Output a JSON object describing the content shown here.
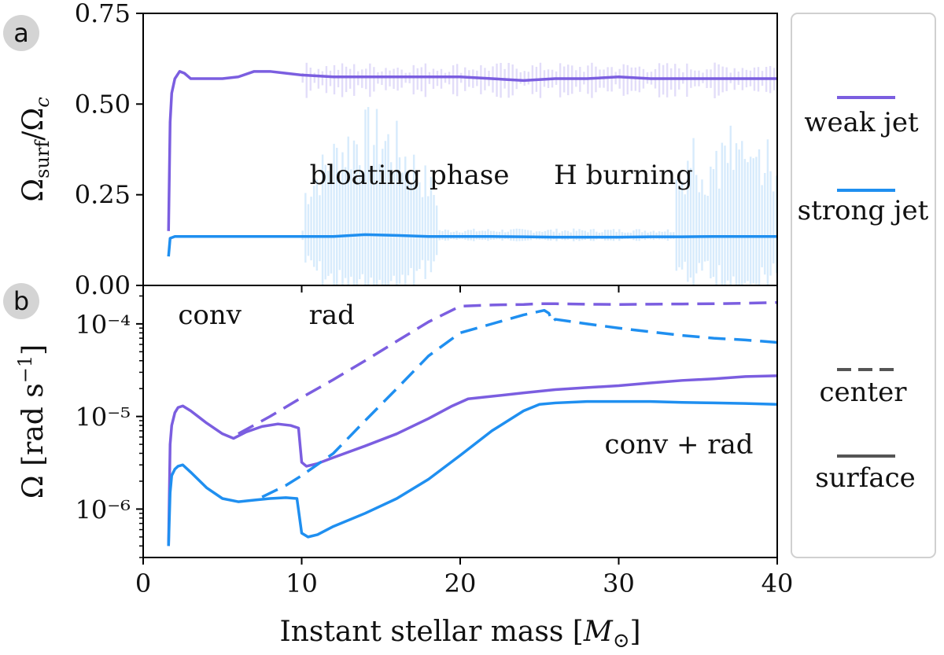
{
  "colors": {
    "weak": "#7b5ee0",
    "strong": "#1f8ff0",
    "weak_band": "#cfc6f5",
    "strong_band": "#c6e2fb",
    "legend_line": "#555555"
  },
  "panels": {
    "a": {
      "letter": "a"
    },
    "b": {
      "letter": "b"
    }
  },
  "legend": {
    "weak": "weak jet",
    "strong": "strong jet",
    "center": "center",
    "surface": "surface"
  },
  "chart_data": [
    {
      "id": "a",
      "type": "line",
      "xlabel": "",
      "ylabel": "Ω_surf/Ω_c",
      "xlim": [
        0,
        40
      ],
      "ylim": [
        0,
        0.75
      ],
      "yticks": [
        "0.00",
        "0.25",
        "0.50",
        "0.75"
      ],
      "annotations": [
        {
          "text": "bloating phase",
          "x": 16.8,
          "y": 0.28
        },
        {
          "text": "H burning",
          "x": 30.3,
          "y": 0.28
        }
      ],
      "series": [
        {
          "name": "weak jet",
          "x": [
            1.6,
            1.7,
            1.8,
            2.0,
            2.3,
            2.6,
            3.0,
            4.0,
            5.0,
            6.0,
            7.0,
            8.0,
            9.0,
            10,
            12,
            14,
            16,
            18,
            20,
            22,
            24,
            26,
            28,
            30,
            32,
            34,
            36,
            38,
            40
          ],
          "y": [
            0.15,
            0.45,
            0.53,
            0.57,
            0.59,
            0.585,
            0.57,
            0.57,
            0.57,
            0.575,
            0.59,
            0.59,
            0.585,
            0.58,
            0.575,
            0.575,
            0.575,
            0.575,
            0.575,
            0.57,
            0.565,
            0.57,
            0.57,
            0.575,
            0.57,
            0.57,
            0.57,
            0.57,
            0.57
          ]
        },
        {
          "name": "strong jet",
          "x": [
            1.6,
            1.7,
            2.0,
            3.0,
            5.0,
            8.0,
            10,
            12,
            14,
            16,
            18,
            20,
            22,
            24,
            26,
            28,
            30,
            32,
            34,
            36,
            38,
            40
          ],
          "y": [
            0.08,
            0.13,
            0.135,
            0.135,
            0.135,
            0.135,
            0.135,
            0.135,
            0.14,
            0.138,
            0.135,
            0.135,
            0.135,
            0.134,
            0.133,
            0.133,
            0.133,
            0.134,
            0.134,
            0.135,
            0.135,
            0.135
          ]
        }
      ]
    },
    {
      "id": "b",
      "type": "line",
      "scale": "log",
      "xlabel": "Instant stellar mass [M_⊙]",
      "ylabel": "Ω [rad s⁻¹]",
      "xlim": [
        0,
        40
      ],
      "ylim": [
        3e-07,
        0.00026
      ],
      "xticks": [
        "0",
        "10",
        "20",
        "30",
        "40"
      ],
      "yticks": [
        "10⁻⁶",
        "10⁻⁵",
        "10⁻⁴"
      ],
      "annotations": [
        {
          "text": "conv",
          "x": 4.2,
          "y": 0.0001
        },
        {
          "text": "rad",
          "x": 11.9,
          "y": 0.0001
        },
        {
          "text": "conv + rad",
          "x": 33.8,
          "y": 4e-06
        }
      ],
      "series": [
        {
          "name": "weak jet",
          "kind": "surface",
          "x": [
            1.6,
            1.7,
            1.8,
            2.0,
            2.2,
            2.5,
            3.0,
            4.0,
            5.0,
            5.7,
            6.5,
            7.5,
            8.5,
            9.3,
            9.8,
            10.0,
            10.3,
            11,
            12,
            14,
            16,
            18,
            19.5,
            20.5,
            22,
            24,
            26,
            28,
            30,
            32,
            34,
            36,
            38,
            40
          ],
          "y": [
            4e-07,
            5e-06,
            8e-06,
            1.1e-05,
            1.25e-05,
            1.3e-05,
            1.15e-05,
            8.5e-06,
            6.5e-06,
            5.8e-06,
            6.8e-06,
            7.8e-06,
            8.3e-06,
            8e-06,
            7.5e-06,
            3.2e-06,
            2.9e-06,
            3.1e-06,
            3.6e-06,
            4.8e-06,
            6.5e-06,
            9.5e-06,
            1.3e-05,
            1.55e-05,
            1.65e-05,
            1.8e-05,
            1.95e-05,
            2.05e-05,
            2.15e-05,
            2.3e-05,
            2.45e-05,
            2.55e-05,
            2.7e-05,
            2.75e-05
          ]
        },
        {
          "name": "strong jet",
          "kind": "surface",
          "x": [
            1.6,
            1.7,
            1.8,
            2.0,
            2.2,
            2.5,
            3.0,
            4.0,
            5.0,
            6.0,
            7.0,
            8.0,
            9.0,
            9.7,
            10.0,
            10.4,
            11,
            12,
            14,
            16,
            18,
            20,
            22,
            24,
            25,
            26,
            28,
            30,
            32,
            34,
            36,
            38,
            40
          ],
          "y": [
            4e-07,
            1.5e-06,
            2.3e-06,
            2.7e-06,
            2.9e-06,
            3e-06,
            2.5e-06,
            1.7e-06,
            1.3e-06,
            1.2e-06,
            1.25e-06,
            1.3e-06,
            1.33e-06,
            1.3e-06,
            5.5e-07,
            5e-07,
            5.3e-07,
            6.5e-07,
            9e-07,
            1.3e-06,
            2.1e-06,
            3.8e-06,
            7e-06,
            1.15e-05,
            1.35e-05,
            1.4e-05,
            1.45e-05,
            1.45e-05,
            1.45e-05,
            1.42e-05,
            1.4e-05,
            1.38e-05,
            1.35e-05
          ]
        },
        {
          "name": "weak jet",
          "kind": "center",
          "x": [
            6.0,
            8.0,
            10,
            12,
            14,
            16,
            18,
            20,
            22,
            24,
            25,
            26,
            28,
            30,
            32,
            34,
            36,
            38,
            40
          ],
          "y": [
            6.5e-06,
            1e-05,
            1.6e-05,
            2.5e-05,
            4e-05,
            6.5e-05,
            0.000105,
            0.000155,
            0.00016,
            0.000162,
            0.000165,
            0.000165,
            0.000163,
            0.000162,
            0.000163,
            0.000164,
            0.000165,
            0.000167,
            0.00017
          ]
        },
        {
          "name": "strong jet",
          "kind": "center",
          "x": [
            7.5,
            9,
            10,
            12,
            14,
            16,
            18,
            20,
            22,
            24,
            25.3,
            25.6,
            25.8,
            26,
            28,
            30,
            32,
            34,
            36,
            38,
            40
          ],
          "y": [
            1.35e-06,
            1.8e-06,
            2.3e-06,
            4e-06,
            9e-06,
            2e-05,
            4.5e-05,
            8e-05,
            0.0001,
            0.000125,
            0.00014,
            0.00013,
            0.000105,
            0.000112,
            0.0001,
            9e-05,
            8.2e-05,
            7.5e-05,
            7e-05,
            6.7e-05,
            6.3e-05
          ]
        }
      ]
    }
  ]
}
